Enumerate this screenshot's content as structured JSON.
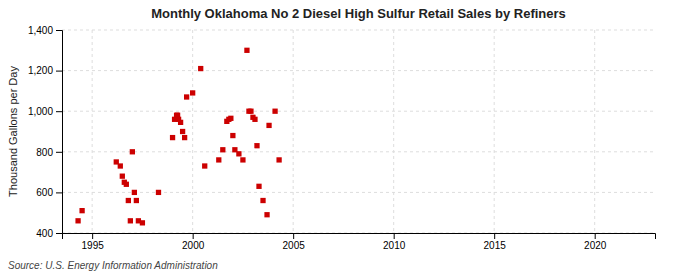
{
  "chart_data": {
    "type": "scatter",
    "title": "Monthly Oklahoma No 2 Diesel High Sulfur Retail Sales by Refiners",
    "ylabel": "Thousand Gallons per Day",
    "annotations": [
      "Source: U.S. Energy Information Administration"
    ],
    "color": "#cc0000",
    "marker": "square",
    "grid": true,
    "xlim": [
      1993.5,
      2023
    ],
    "ylim": [
      400,
      1400
    ],
    "xticks": [
      1995,
      2000,
      2005,
      2010,
      2015,
      2020
    ],
    "yticks": [
      400,
      600,
      800,
      {
        "value": 1000,
        "label": "1,000"
      },
      {
        "value": 1200,
        "label": "1,200"
      },
      {
        "value": 1400,
        "label": "1,400"
      }
    ],
    "x": [
      1994.3,
      1994.5,
      1996.2,
      1996.4,
      1996.5,
      1996.6,
      1996.7,
      1996.8,
      1996.9,
      1997.0,
      1997.1,
      1997.2,
      1997.3,
      1997.5,
      1998.3,
      1999.0,
      1999.1,
      1999.2,
      1999.25,
      1999.3,
      1999.4,
      1999.5,
      1999.6,
      1999.7,
      2000.0,
      2000.4,
      2000.6,
      2001.3,
      2001.5,
      2001.7,
      2001.8,
      2001.9,
      2002.0,
      2002.1,
      2002.3,
      2002.5,
      2002.7,
      2002.8,
      2002.9,
      2003.0,
      2003.1,
      2003.2,
      2003.3,
      2003.5,
      2003.7,
      2003.8,
      2004.1,
      2004.3
    ],
    "values": [
      460,
      510,
      750,
      730,
      680,
      650,
      640,
      560,
      460,
      800,
      600,
      560,
      460,
      450,
      600,
      870,
      960,
      980,
      980,
      960,
      945,
      900,
      870,
      1070,
      1090,
      1210,
      730,
      760,
      810,
      950,
      960,
      965,
      880,
      810,
      790,
      760,
      1300,
      1000,
      1000,
      970,
      960,
      830,
      630,
      560,
      490,
      930,
      1000,
      760
    ]
  }
}
